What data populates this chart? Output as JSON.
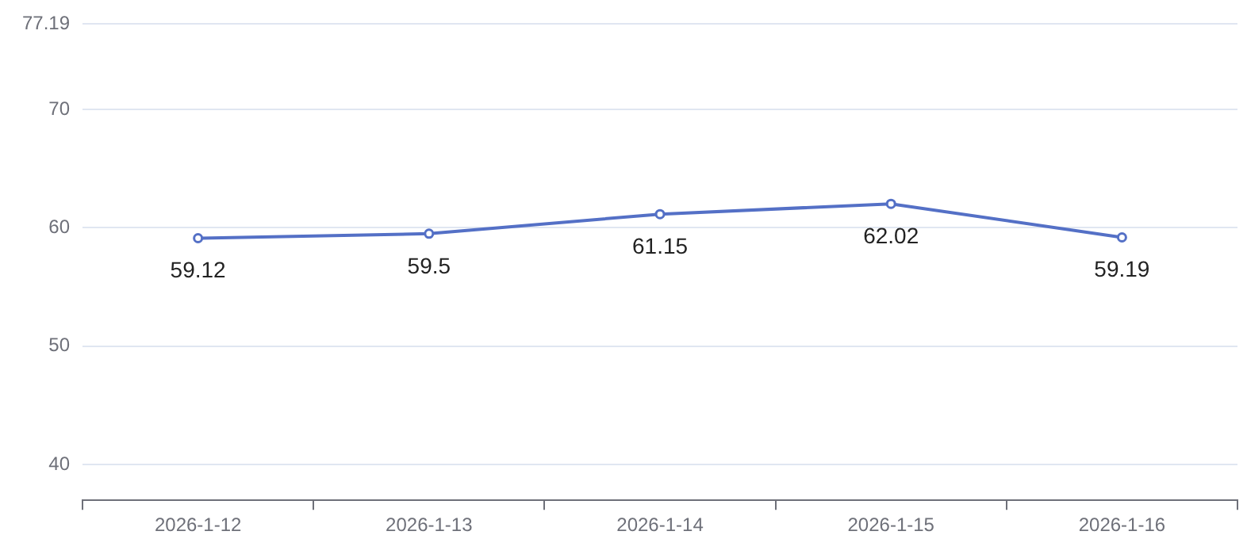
{
  "chart_data": {
    "type": "line",
    "categories": [
      "2026-1-12",
      "2026-1-13",
      "2026-1-14",
      "2026-1-15",
      "2026-1-16"
    ],
    "series": [
      {
        "color": "#5470c6",
        "values": [
          59.12,
          59.5,
          61.15,
          62.02,
          59.19
        ]
      }
    ],
    "ylim": [
      37,
      77.19
    ],
    "yticks": [
      40,
      50,
      60,
      70,
      77.19
    ],
    "grid": "y",
    "legend": false,
    "marker": "circle",
    "line_style": "solid",
    "data_labels": true
  }
}
